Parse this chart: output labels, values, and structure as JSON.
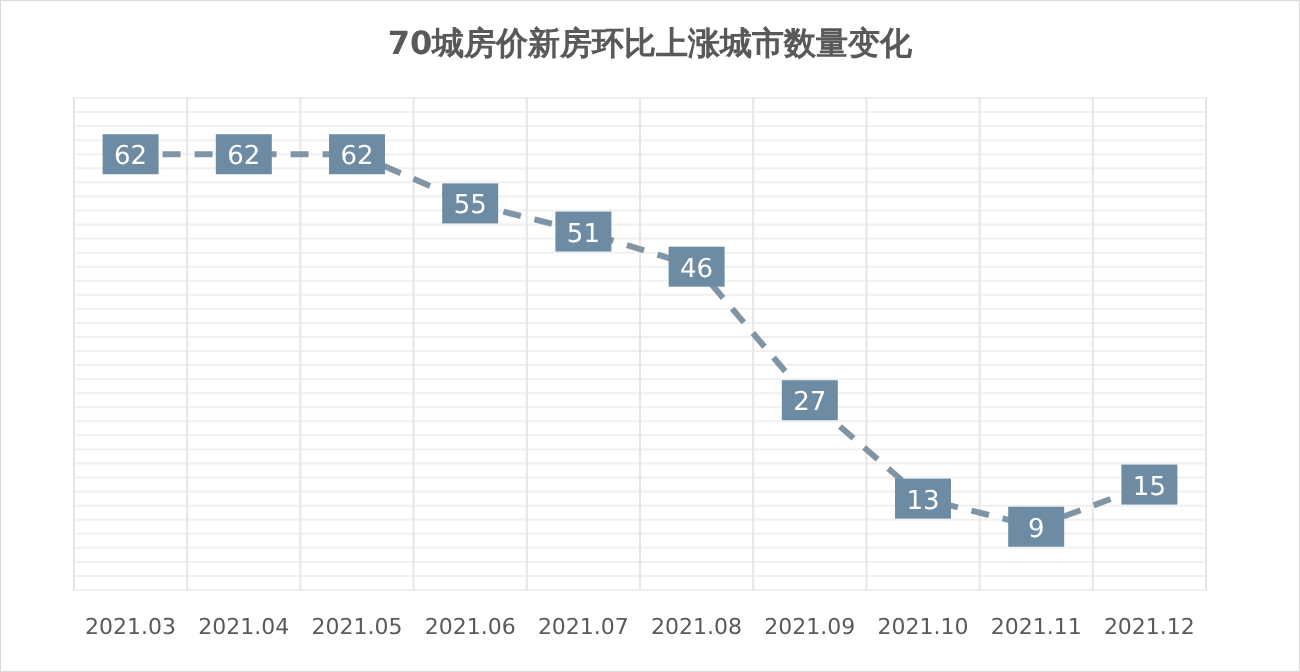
{
  "chart_data": {
    "type": "line",
    "title": "70城房价新房环比上涨城市数量变化",
    "categories": [
      "2021.03",
      "2021.04",
      "2021.05",
      "2021.06",
      "2021.07",
      "2021.08",
      "2021.09",
      "2021.10",
      "2021.11",
      "2021.12"
    ],
    "series": [
      {
        "color": "#7f95a6",
        "values": [
          62,
          62,
          62,
          55,
          51,
          46,
          27,
          13,
          9,
          15
        ]
      }
    ],
    "ylim": [
      0,
      70
    ],
    "tick_labels": "x",
    "grid": true,
    "line_style": "dashed",
    "marker": "square",
    "data_labels": true
  }
}
